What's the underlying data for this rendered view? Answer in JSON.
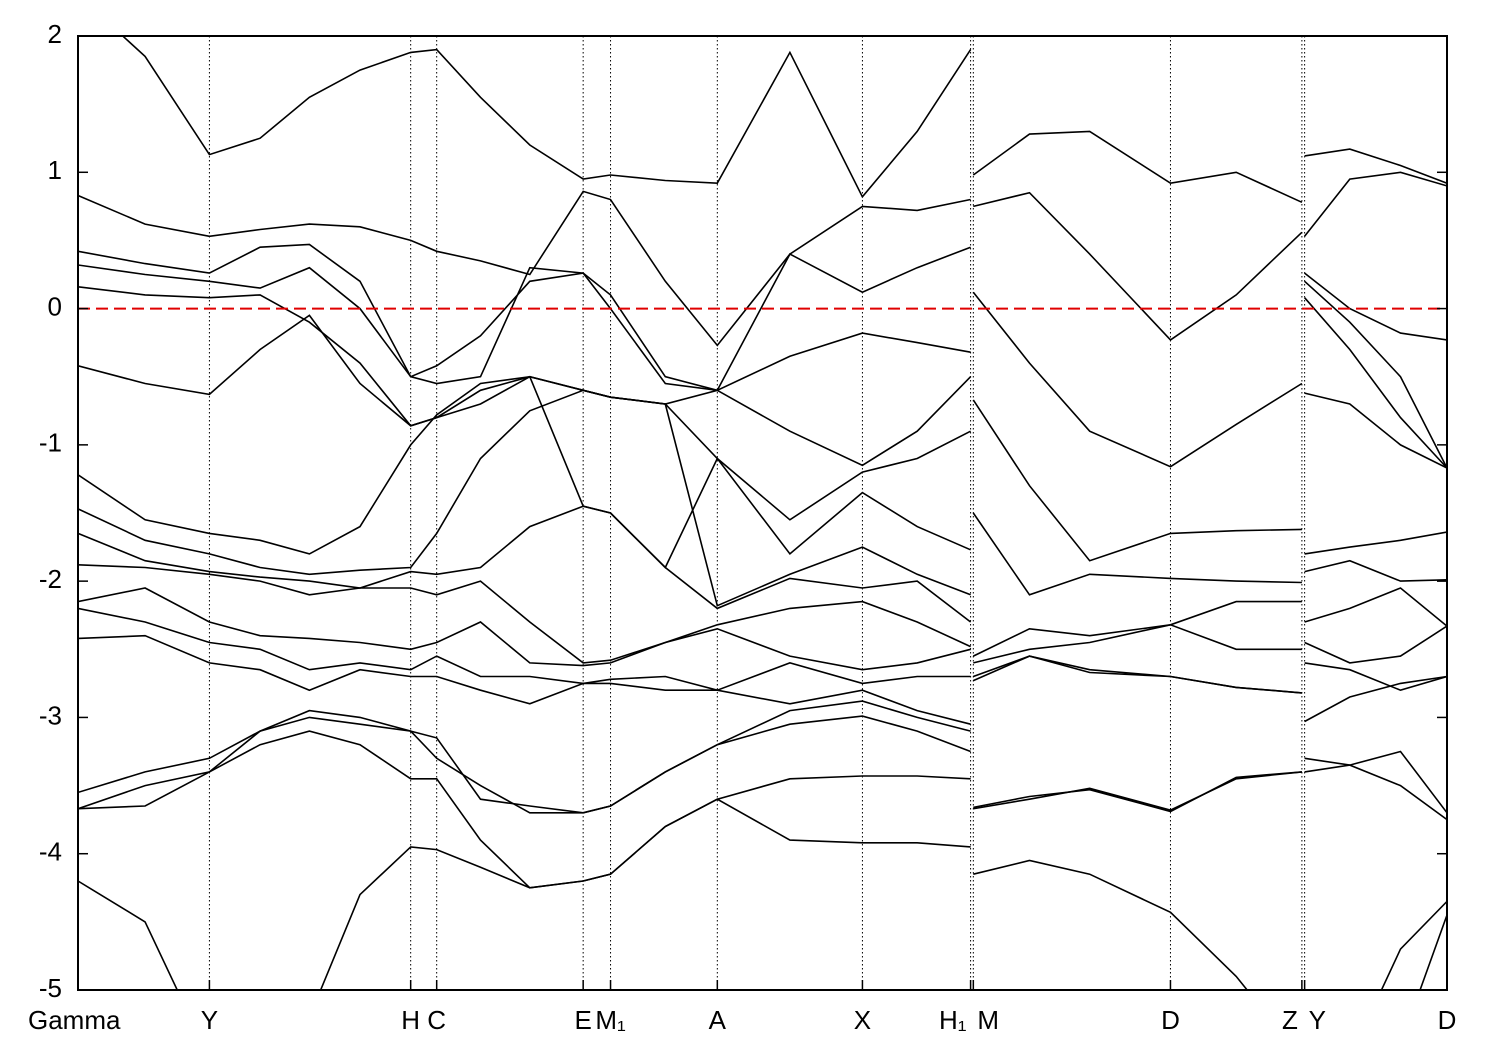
{
  "chart_data": {
    "type": "line",
    "color": "#000000",
    "reference_line": {
      "value": 0,
      "color": "#e00000"
    },
    "ylim": [
      -5,
      2
    ],
    "yticks": [
      -5,
      -4,
      -3,
      -2,
      -1,
      0,
      1,
      2
    ],
    "xlim": [
      0,
      1
    ],
    "xticks": [
      {
        "value": 0,
        "label": "Gamma"
      },
      {
        "value": 0.096,
        "label": "Y"
      },
      {
        "value": 0.243,
        "label": "H"
      },
      {
        "value": 0.262,
        "label": "C"
      },
      {
        "value": 0.369,
        "label": "E"
      },
      {
        "value": 0.389,
        "label": "M₁"
      },
      {
        "value": 0.467,
        "label": "A"
      },
      {
        "value": 0.573,
        "label": "X"
      },
      {
        "value": 0.652,
        "label": "H₁"
      },
      {
        "value": 0.654,
        "label": "M"
      },
      {
        "value": 0.798,
        "label": "D"
      },
      {
        "value": 0.894,
        "label": "Z"
      },
      {
        "value": 0.896,
        "label": "Y"
      },
      {
        "value": 1,
        "label": "D"
      }
    ],
    "x": [
      0,
      0.049,
      0.096,
      0.133,
      0.169,
      0.206,
      0.243,
      0.262,
      0.294,
      0.33,
      0.369,
      0.389,
      0.429,
      0.467,
      0.52,
      0.573,
      0.613,
      0.652,
      null,
      0.654,
      0.695,
      0.739,
      0.798,
      0.846,
      0.894,
      null,
      0.896,
      0.929,
      0.966,
      1.0
    ],
    "series": [
      {
        "values": [
          2.3,
          1.85,
          1.13,
          1.25,
          1.55,
          1.75,
          1.88,
          1.9,
          1.55,
          1.2,
          0.95,
          0.98,
          0.94,
          0.92,
          1.88,
          0.82,
          1.3,
          1.9,
          null,
          0.98,
          1.28,
          1.3,
          0.92,
          1.0,
          0.78,
          null,
          1.12,
          1.17,
          1.05,
          0.92
        ]
      },
      {
        "values": [
          0.83,
          0.62,
          0.53,
          0.58,
          0.62,
          0.6,
          0.5,
          0.42,
          0.35,
          0.25,
          0.86,
          0.8,
          0.2,
          -0.27,
          0.4,
          0.75,
          0.72,
          0.8,
          null,
          0.75,
          0.85,
          0.4,
          -0.23,
          0.1,
          0.56,
          null,
          0.53,
          0.95,
          1.0,
          0.9
        ]
      },
      {
        "values": [
          0.42,
          0.33,
          0.26,
          0.45,
          0.47,
          0.2,
          -0.5,
          -0.55,
          -0.5,
          0.3,
          0.26,
          0.1,
          -0.5,
          -0.6,
          0.4,
          0.12,
          0.3,
          0.45,
          null,
          0.12,
          -0.4,
          -0.9,
          -1.16,
          -0.85,
          -0.55,
          null,
          0.26,
          0.0,
          -0.18,
          -0.23
        ]
      },
      {
        "values": [
          0.32,
          0.25,
          0.2,
          0.15,
          0.3,
          0.0,
          -0.5,
          -0.42,
          -0.2,
          0.2,
          0.26,
          0.0,
          -0.55,
          -0.6,
          -0.35,
          -0.18,
          -0.25,
          -0.32,
          null,
          -0.67,
          -1.3,
          -1.85,
          -1.65,
          -1.63,
          -1.62,
          null,
          0.2,
          -0.1,
          -0.5,
          -1.17
        ]
      },
      {
        "values": [
          0.16,
          0.1,
          0.08,
          0.1,
          -0.1,
          -0.4,
          -0.86,
          -0.8,
          -0.6,
          -0.5,
          -0.6,
          -0.65,
          -0.7,
          -0.6,
          -0.9,
          -1.15,
          -0.9,
          -0.5,
          null,
          -1.5,
          -2.1,
          -1.95,
          -1.98,
          -2.0,
          -2.01,
          null,
          0.08,
          -0.3,
          -0.8,
          -1.17
        ]
      },
      {
        "values": [
          -0.42,
          -0.55,
          -0.63,
          -0.3,
          -0.05,
          -0.55,
          -0.86,
          -0.8,
          -0.7,
          -0.5,
          -0.6,
          -0.65,
          -0.7,
          -1.1,
          -1.55,
          -1.2,
          -1.1,
          -0.9,
          null,
          -2.55,
          -2.35,
          -2.4,
          -2.32,
          -2.15,
          -2.15,
          null,
          -0.62,
          -0.7,
          -1.0,
          -1.17
        ]
      },
      {
        "values": [
          -1.22,
          -1.55,
          -1.65,
          -1.7,
          -1.8,
          -1.6,
          -1.0,
          -0.78,
          -0.55,
          -0.5,
          -1.45,
          -1.5,
          -1.9,
          -1.1,
          -1.8,
          -1.35,
          -1.6,
          -1.77,
          null,
          -2.6,
          -2.5,
          -2.45,
          -2.32,
          -2.5,
          -2.5,
          null,
          -1.8,
          -1.75,
          -1.7,
          -1.64
        ]
      },
      {
        "values": [
          -1.47,
          -1.7,
          -1.8,
          -1.9,
          -1.95,
          -1.92,
          -1.9,
          -1.65,
          -1.1,
          -0.75,
          -0.6,
          -0.65,
          -0.7,
          -2.18,
          -1.95,
          -1.75,
          -1.95,
          -2.1,
          null,
          -2.7,
          -2.55,
          -2.65,
          -2.7,
          -2.78,
          -2.82,
          null,
          -1.93,
          -1.85,
          -2.0,
          -1.99
        ]
      },
      {
        "values": [
          -1.65,
          -1.85,
          -1.93,
          -1.97,
          -2.0,
          -2.05,
          -1.93,
          -1.95,
          -1.9,
          -1.6,
          -1.45,
          -1.5,
          -1.9,
          -2.2,
          -1.98,
          -2.05,
          -2.0,
          -2.3,
          null,
          -2.73,
          -2.55,
          -2.67,
          -2.7,
          -2.78,
          -2.82,
          null,
          -2.3,
          -2.2,
          -2.05,
          -2.33
        ]
      },
      {
        "values": [
          -1.88,
          -1.9,
          -1.95,
          -2.0,
          -2.1,
          -2.05,
          -2.05,
          -2.1,
          -2.0,
          -2.3,
          -2.6,
          -2.58,
          -2.45,
          -2.32,
          -2.2,
          -2.15,
          -2.3,
          -2.48,
          null,
          -3.67,
          -3.6,
          -3.52,
          -3.68,
          -3.45,
          -3.4,
          null,
          -2.45,
          -2.6,
          -2.55,
          -2.33
        ]
      },
      {
        "values": [
          -2.15,
          -2.05,
          -2.3,
          -2.4,
          -2.42,
          -2.45,
          -2.5,
          -2.45,
          -2.3,
          -2.6,
          -2.62,
          -2.6,
          -2.45,
          -2.35,
          -2.55,
          -2.65,
          -2.6,
          -2.5,
          null,
          -3.66,
          -3.58,
          -3.53,
          -3.69,
          -3.44,
          -3.4,
          null,
          -2.6,
          -2.65,
          -2.8,
          -2.7
        ]
      },
      {
        "values": [
          -2.2,
          -2.3,
          -2.45,
          -2.5,
          -2.65,
          -2.6,
          -2.65,
          -2.55,
          -2.7,
          -2.7,
          -2.75,
          -2.72,
          -2.7,
          -2.8,
          -2.6,
          -2.75,
          -2.7,
          -2.7,
          null,
          -4.15,
          -4.05,
          -4.15,
          -4.43,
          -4.9,
          -5.5,
          null,
          -3.03,
          -2.85,
          -2.75,
          -2.7
        ]
      },
      {
        "values": [
          -2.42,
          -2.4,
          -2.6,
          -2.65,
          -2.8,
          -2.65,
          -2.7,
          -2.7,
          -2.8,
          -2.9,
          -2.75,
          -2.75,
          -2.8,
          -2.8,
          -2.9,
          -2.8,
          -2.95,
          -3.05,
          null,
          null,
          null,
          null,
          null,
          null,
          null,
          null,
          -3.3,
          -3.35,
          -3.25,
          -3.7
        ]
      },
      {
        "values": [
          -3.55,
          -3.4,
          -3.3,
          -3.1,
          -2.95,
          -3.0,
          -3.1,
          -3.3,
          -3.5,
          -3.7,
          -3.7,
          -3.65,
          -3.4,
          -3.2,
          -2.95,
          -2.88,
          -3.0,
          -3.1,
          null,
          null,
          null,
          null,
          null,
          null,
          null,
          null,
          -3.4,
          -3.35,
          -3.5,
          -3.75
        ]
      },
      {
        "values": [
          -3.67,
          -3.5,
          -3.4,
          -3.1,
          -3.0,
          -3.05,
          -3.1,
          -3.15,
          -3.6,
          -3.65,
          -3.7,
          -3.65,
          -3.4,
          -3.2,
          -3.05,
          -2.99,
          -3.1,
          -3.25,
          null,
          null,
          null,
          null,
          null,
          null,
          null,
          null,
          -5.5,
          -5.5,
          -4.7,
          -4.35
        ]
      },
      {
        "values": [
          -3.67,
          -3.65,
          -3.4,
          -3.2,
          -3.1,
          -3.2,
          -3.45,
          -3.45,
          -3.9,
          -4.25,
          -4.2,
          -4.15,
          -3.8,
          -3.6,
          -3.9,
          -3.92,
          -3.92,
          -3.95,
          null,
          null,
          null,
          null,
          null,
          null,
          null,
          null,
          -5.5,
          -5.5,
          -5.4,
          -4.45
        ]
      },
      {
        "values": [
          -4.2,
          -4.5,
          -5.5,
          -5.5,
          -5.2,
          -4.3,
          -3.95,
          -3.97,
          -4.1,
          -4.25,
          -4.2,
          -4.15,
          -3.8,
          -3.6,
          -3.45,
          -3.43,
          -3.43,
          -3.45,
          null,
          null,
          null,
          null,
          null,
          null,
          null,
          null,
          null,
          null,
          null,
          null
        ]
      }
    ]
  }
}
